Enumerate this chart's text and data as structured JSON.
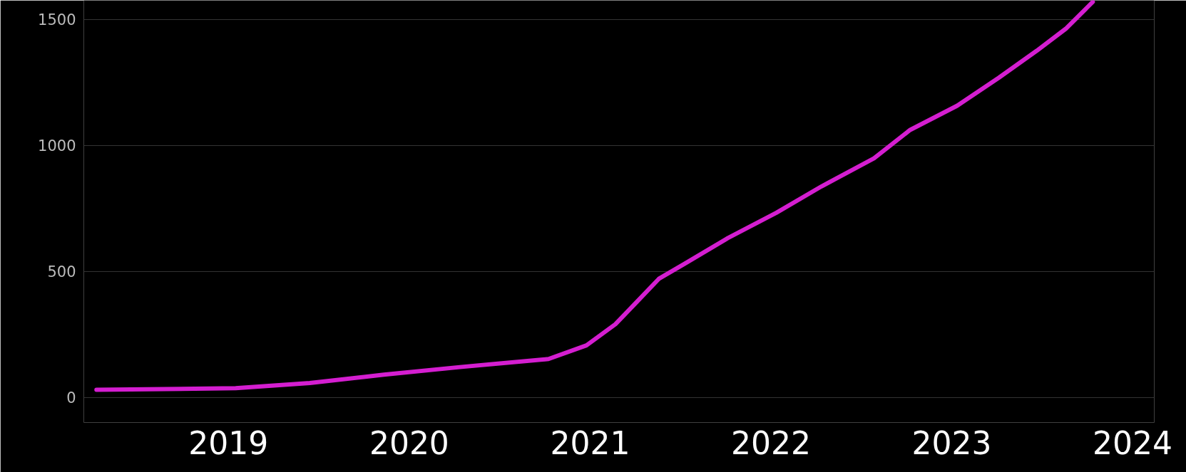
{
  "chart_data": {
    "type": "line",
    "x": [
      2018.27,
      2019.04,
      2019.45,
      2019.86,
      2020.28,
      2020.77,
      2020.98,
      2021.14,
      2021.26,
      2021.38,
      2021.52,
      2021.76,
      2022.03,
      2022.28,
      2022.57,
      2022.77,
      2023.03,
      2023.26,
      2023.47,
      2023.63,
      2023.78
    ],
    "series": [
      {
        "color": "#d41ed0",
        "values": [
          30,
          36,
          57,
          90,
          120,
          152,
          206,
          290,
          380,
          470,
          529,
          631,
          732,
          837,
          948,
          1061,
          1157,
          1268,
          1375,
          1462,
          1569
        ]
      }
    ],
    "xlim": [
      2018.2,
      2024.12
    ],
    "ylim": [
      -100,
      1575
    ],
    "xticks": [
      2019,
      2020,
      2021,
      2022,
      2023,
      2024
    ],
    "yticks": [
      0,
      500,
      1000,
      1500
    ],
    "grid": "y",
    "marker": "none",
    "line_style": "solid"
  }
}
